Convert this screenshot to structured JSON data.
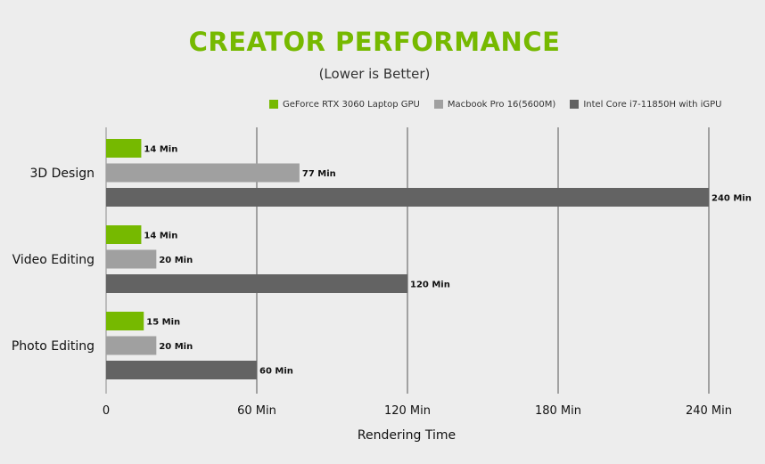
{
  "colors": {
    "title": "#76b900",
    "series": [
      "#76b900",
      "#a0a0a0",
      "#636363"
    ],
    "grid": "#555555"
  },
  "chart_data": {
    "type": "bar",
    "orientation": "horizontal",
    "title": "CREATOR PERFORMANCE",
    "subtitle": "(Lower is Better)",
    "xlabel": "Rendering Time",
    "ylabel": "",
    "categories": [
      "3D Design",
      "Video Editing",
      "Photo Editing"
    ],
    "series": [
      {
        "name": "GeForce RTX 3060 Laptop GPU",
        "values": [
          14,
          14,
          15
        ],
        "labels": [
          "14 Min",
          "14 Min",
          "15 Min"
        ]
      },
      {
        "name": "Macbook Pro 16(5600M)",
        "values": [
          77,
          20,
          20
        ],
        "labels": [
          "77 Min",
          "20 Min",
          "20 Min"
        ]
      },
      {
        "name": "Intel Core i7-11850H with iGPU",
        "values": [
          240,
          120,
          60
        ],
        "labels": [
          "240 Min",
          "120 Min",
          "60 Min"
        ]
      }
    ],
    "xlim": [
      0,
      240
    ],
    "xticks": [
      0,
      60,
      120,
      180,
      240
    ],
    "xtick_labels": [
      "0",
      "60 Min",
      "120 Min",
      "180 Min",
      "240 Min"
    ],
    "grid": true,
    "legend_position": "top-right"
  }
}
